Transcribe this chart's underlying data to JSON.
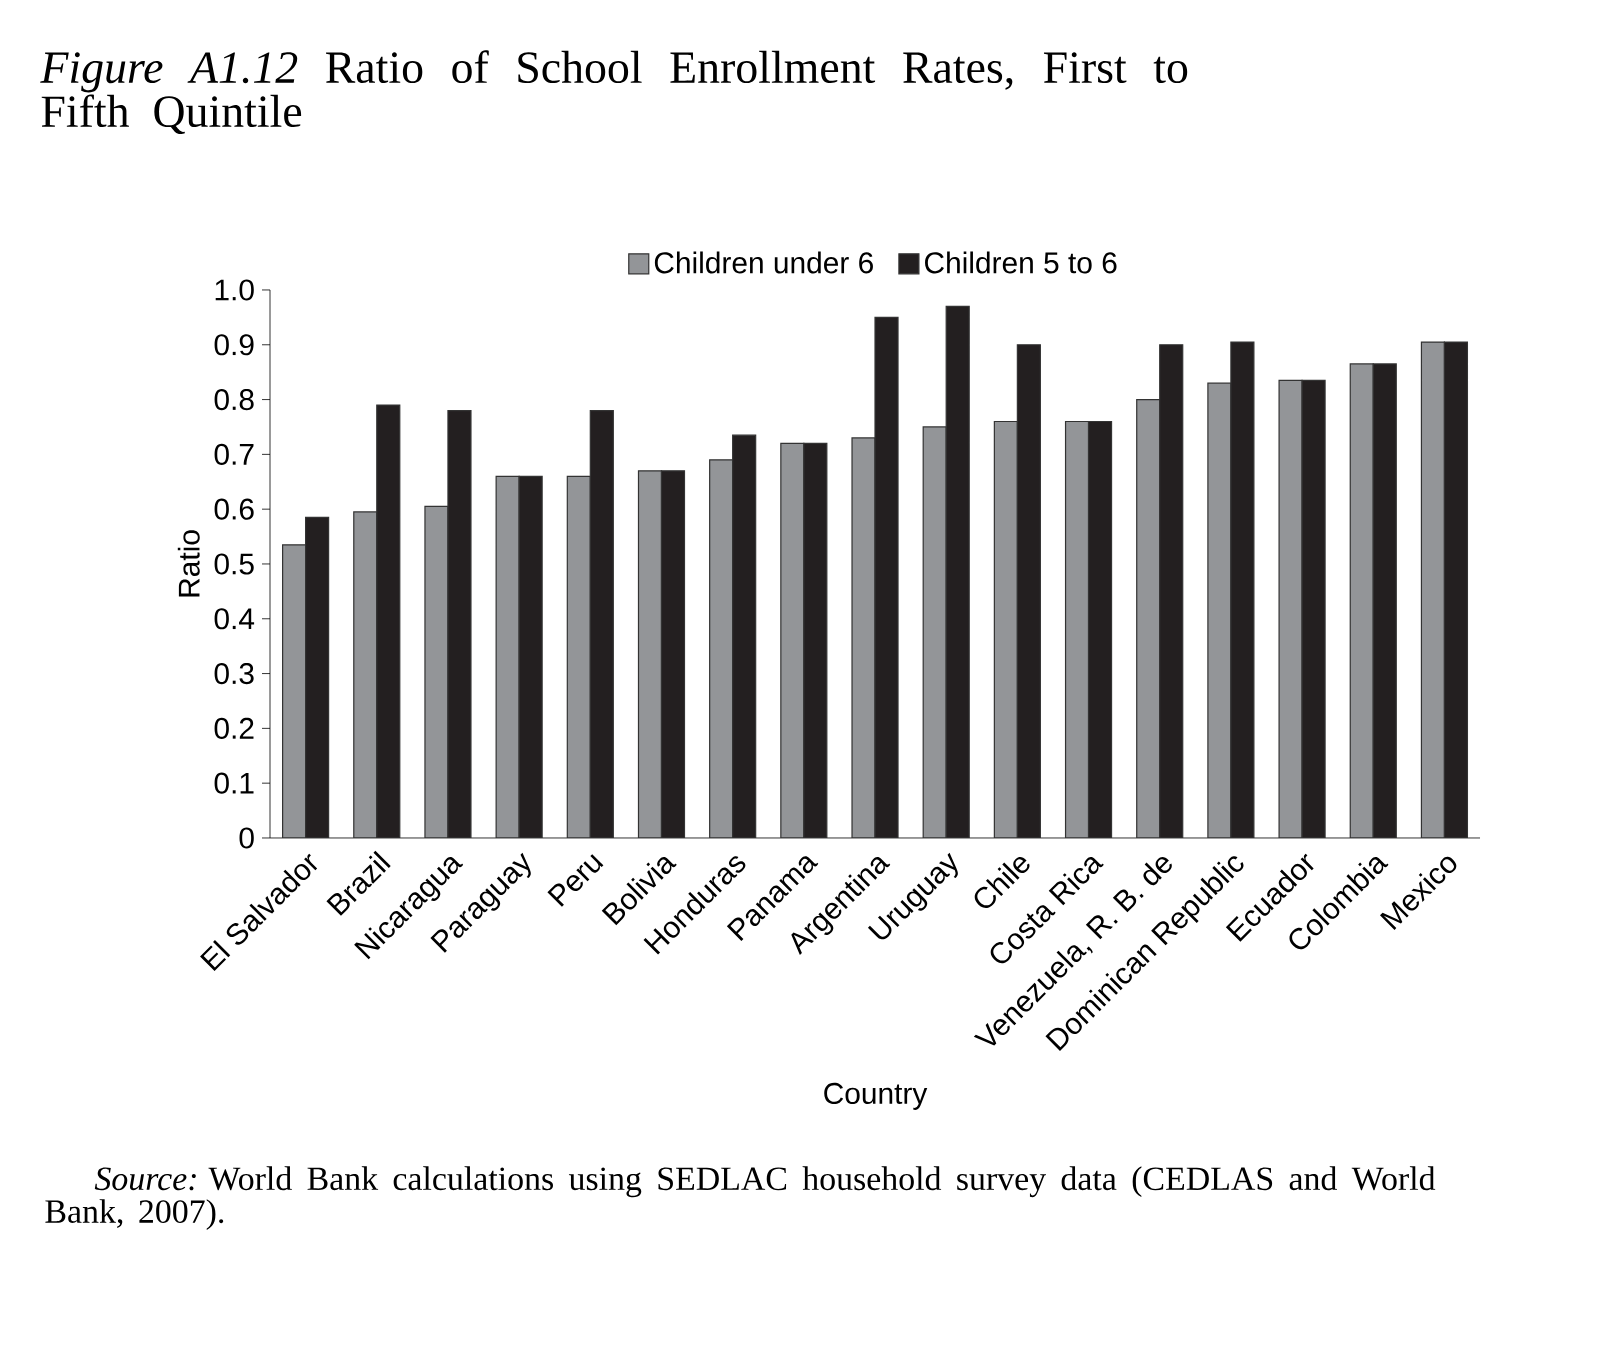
{
  "chart_data": {
    "type": "bar",
    "title": "*Figure A1.12* Ratio of School Enrollment Rates, First to Fifth Quintile",
    "xlabel": "Country",
    "ylabel": "Ratio",
    "categories": [
      "El Salvador",
      "Brazil",
      "Nicaragua",
      "Paraguay",
      "Peru",
      "Bolivia",
      "Honduras",
      "Panama",
      "Argentina",
      "Uruguay",
      "Chile",
      "Costa Rica",
      "Venezuela, R. B. de",
      "Dominican Republic",
      "Ecuador",
      "Colombia",
      "Mexico"
    ],
    "series": [
      {
        "name": "Children under 6",
        "color": "#939598",
        "values": [
          0.535,
          0.595,
          0.605,
          0.66,
          0.66,
          0.67,
          0.69,
          0.72,
          0.73,
          0.75,
          0.76,
          0.76,
          0.8,
          0.83,
          0.835,
          0.865,
          0.905
        ]
      },
      {
        "name": "Children 5 to 6",
        "color": "#231f20",
        "values": [
          0.585,
          0.79,
          0.78,
          0.66,
          0.78,
          0.67,
          0.735,
          0.72,
          0.95,
          0.97,
          0.9,
          0.76,
          0.9,
          0.905,
          0.835,
          0.865,
          0.905
        ]
      }
    ],
    "ylim": [
      0,
      1.0
    ],
    "yticks": [
      0,
      0.1,
      0.2,
      0.3,
      0.4,
      0.5,
      0.6,
      0.7,
      0.8,
      0.9,
      {
        "value": 1.0,
        "label": "1.0"
      }
    ],
    "legend": "top",
    "grid": false,
    "annotations": [
      "*Source:* World Bank calculations using SEDLAC household survey data (CEDLAS and World Bank, 2007)."
    ]
  }
}
